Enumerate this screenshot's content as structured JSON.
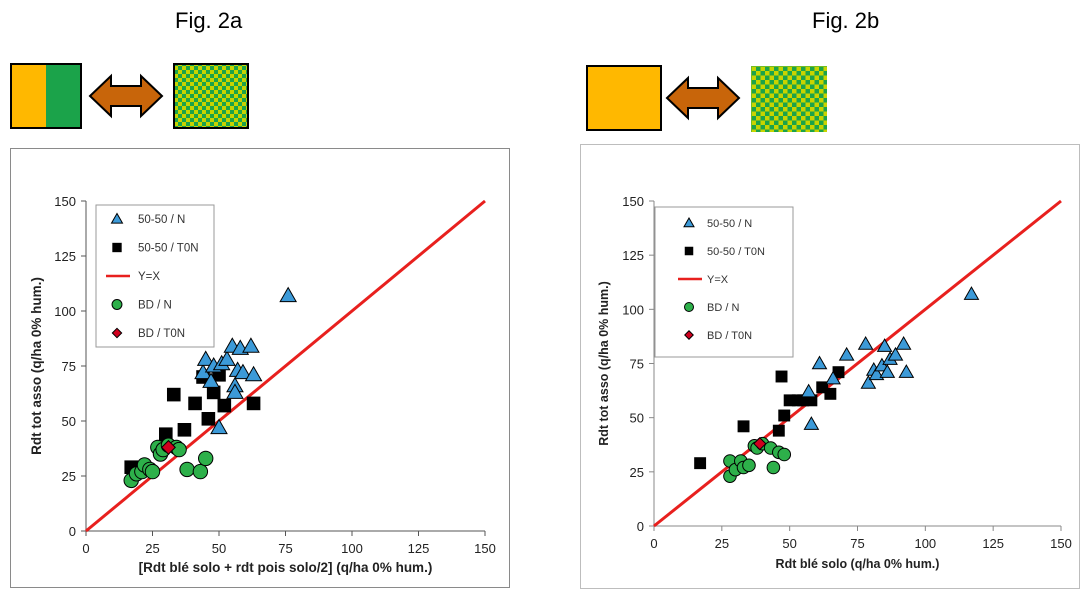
{
  "figures": [
    {
      "title": "Fig. 2a",
      "icon_names": [
        "orange-green-split-square-icon",
        "double-arrow-icon",
        "checkered-square-icon"
      ]
    },
    {
      "title": "Fig. 2b",
      "icon_names": [
        "orange-square-icon",
        "double-arrow-icon",
        "checkered-square-icon"
      ]
    }
  ],
  "colors": {
    "orange": "#FFB800",
    "green": "#1BA34A",
    "arrow": "#C8650A",
    "check_yellow": "#C8D400",
    "check_green": "#1BA34A",
    "triangle": "#3C9AD8",
    "square": "#000000",
    "line": "#E8201E",
    "circle": "#2DB04A",
    "diamond": "#D0001E"
  },
  "chart_data": [
    {
      "type": "scatter",
      "title": "",
      "xlabel": "[Rdt blé solo + rdt pois solo/2] (q/ha 0% hum.)",
      "ylabel": "Rdt tot asso (q/ha 0% hum.)",
      "xlim": [
        0,
        150
      ],
      "ylim": [
        0,
        150
      ],
      "xticks": [
        "0",
        "25",
        "50",
        "75",
        "100",
        "125",
        "150"
      ],
      "yticks": [
        "0",
        "25",
        "50",
        "75",
        "100",
        "125",
        "150"
      ],
      "grid": false,
      "legend_position": "top-left",
      "series": [
        {
          "name": "50-50 / N",
          "marker": "triangle",
          "points": [
            [
              76,
              107
            ],
            [
              44,
              72
            ],
            [
              45,
              78
            ],
            [
              48,
              75
            ],
            [
              51,
              76
            ],
            [
              53,
              78
            ],
            [
              55,
              84
            ],
            [
              58,
              83
            ],
            [
              62,
              84
            ],
            [
              57,
              73
            ],
            [
              56,
              66
            ],
            [
              59,
              72
            ],
            [
              63,
              71
            ],
            [
              56,
              63
            ],
            [
              47,
              68
            ],
            [
              50,
              47
            ]
          ]
        },
        {
          "name": "50-50 / T0N",
          "marker": "square",
          "points": [
            [
              17,
              29
            ],
            [
              30,
              44
            ],
            [
              33,
              62
            ],
            [
              37,
              46
            ],
            [
              41,
              58
            ],
            [
              44,
              70
            ],
            [
              46,
              51
            ],
            [
              48,
              63
            ],
            [
              50,
              71
            ],
            [
              52,
              57
            ],
            [
              63,
              58
            ]
          ]
        },
        {
          "name": "Y=X",
          "marker": "line",
          "points": [
            [
              0,
              0
            ],
            [
              150,
              150
            ]
          ]
        },
        {
          "name": "BD / N",
          "marker": "circle",
          "points": [
            [
              17,
              23
            ],
            [
              19,
              26
            ],
            [
              21,
              27
            ],
            [
              22,
              30
            ],
            [
              24,
              28
            ],
            [
              25,
              27
            ],
            [
              27,
              38
            ],
            [
              28,
              35
            ],
            [
              29,
              37
            ],
            [
              31,
              39
            ],
            [
              34,
              38
            ],
            [
              35,
              37
            ],
            [
              38,
              28
            ],
            [
              43,
              27
            ],
            [
              45,
              33
            ]
          ]
        },
        {
          "name": "BD / T0N",
          "marker": "diamond",
          "points": [
            [
              31,
              38
            ]
          ]
        }
      ]
    },
    {
      "type": "scatter",
      "title": "",
      "xlabel": "Rdt blé solo (q/ha 0% hum.)",
      "ylabel": "Rdt tot asso (q/ha 0% hum.)",
      "xlim": [
        0,
        150
      ],
      "ylim": [
        0,
        150
      ],
      "xticks": [
        "0",
        "25",
        "50",
        "75",
        "100",
        "125",
        "150"
      ],
      "yticks": [
        "0",
        "25",
        "50",
        "75",
        "100",
        "125",
        "150"
      ],
      "grid": false,
      "legend_position": "top-left",
      "series": [
        {
          "name": "50-50 / N",
          "marker": "triangle",
          "points": [
            [
              117,
              107
            ],
            [
              58,
              47
            ],
            [
              57,
              62
            ],
            [
              61,
              75
            ],
            [
              66,
              68
            ],
            [
              71,
              79
            ],
            [
              78,
              84
            ],
            [
              79,
              66
            ],
            [
              81,
              72
            ],
            [
              82,
              70
            ],
            [
              84,
              74
            ],
            [
              85,
              83
            ],
            [
              86,
              71
            ],
            [
              87,
              77
            ],
            [
              89,
              79
            ],
            [
              92,
              84
            ],
            [
              93,
              71
            ]
          ]
        },
        {
          "name": "50-50 / T0N",
          "marker": "square",
          "points": [
            [
              17,
              29
            ],
            [
              33,
              46
            ],
            [
              46,
              44
            ],
            [
              47,
              69
            ],
            [
              48,
              51
            ],
            [
              50,
              58
            ],
            [
              53,
              58
            ],
            [
              55,
              58
            ],
            [
              58,
              58
            ],
            [
              62,
              64
            ],
            [
              65,
              61
            ],
            [
              68,
              71
            ]
          ]
        },
        {
          "name": "Y=X",
          "marker": "line",
          "points": [
            [
              0,
              0
            ],
            [
              150,
              150
            ]
          ]
        },
        {
          "name": "BD / N",
          "marker": "circle",
          "points": [
            [
              28,
              23
            ],
            [
              28,
              30
            ],
            [
              30,
              26
            ],
            [
              32,
              30
            ],
            [
              33,
              27
            ],
            [
              35,
              28
            ],
            [
              37,
              37
            ],
            [
              38,
              36
            ],
            [
              40,
              38
            ],
            [
              43,
              36
            ],
            [
              44,
              27
            ],
            [
              46,
              34
            ],
            [
              48,
              33
            ]
          ]
        },
        {
          "name": "BD / T0N",
          "marker": "diamond",
          "points": [
            [
              39,
              38
            ]
          ]
        }
      ]
    }
  ]
}
